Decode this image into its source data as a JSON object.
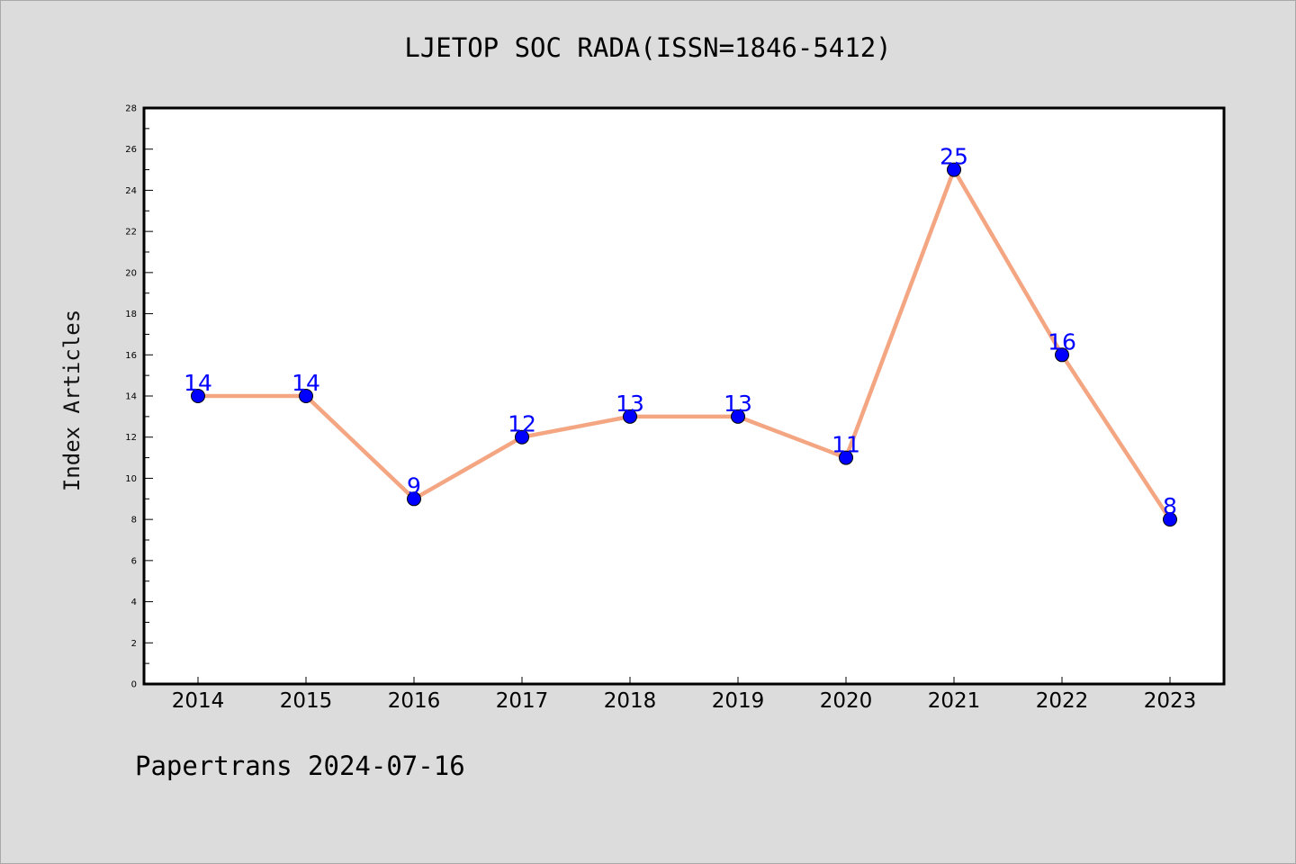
{
  "header": {
    "title": "LJETOP SOC RADA(ISSN=1846-5412)"
  },
  "footer": {
    "note": "Papertrans 2024-07-16"
  },
  "colors": {
    "background": "#dcdcdc",
    "plot_area": "#ffffff",
    "line": "#f4a582",
    "marker": "#0000ff",
    "data_label": "#0000ff"
  },
  "chart_data": {
    "type": "line",
    "title": "LJETOP SOC RADA(ISSN=1846-5412)",
    "xlabel": "",
    "ylabel": "Index Articles",
    "categories": [
      "2014",
      "2015",
      "2016",
      "2017",
      "2018",
      "2019",
      "2020",
      "2021",
      "2022",
      "2023"
    ],
    "series": [
      {
        "values": [
          14,
          14,
          9,
          12,
          13,
          13,
          11,
          25,
          16,
          8
        ]
      }
    ],
    "ylim": [
      0,
      28
    ],
    "yticks": [
      0,
      2,
      4,
      6,
      8,
      10,
      12,
      14,
      16,
      18,
      20,
      22,
      24,
      26,
      28
    ],
    "grid": false,
    "legend": "none",
    "data_labels": true
  }
}
